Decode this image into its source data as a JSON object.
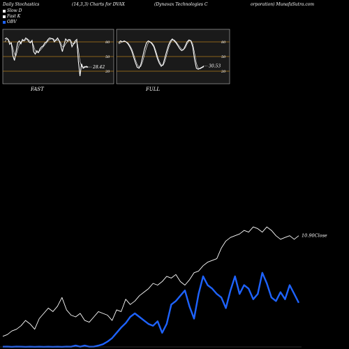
{
  "header": {
    "left": "Daily Stochastics",
    "center": "(14,3,3) Charts for DVAX",
    "right_a": "(Dynavax Technologies C",
    "right_b": "orporation) MunafaSutra.com"
  },
  "legend": [
    {
      "label": "Slow  D",
      "color": "#ffffff"
    },
    {
      "label": "Fast  K",
      "color": "#ffffff"
    },
    {
      "label": "OBV",
      "color": "#1e63ff"
    }
  ],
  "colors": {
    "obv": "#1e63ff",
    "close": "#ffffff",
    "level": "#b07a1a",
    "panel": "#1a1a1a"
  },
  "panels": [
    {
      "label": "FAST",
      "last_label": "28.42",
      "levels": [
        80,
        50,
        20
      ],
      "k": [
        86,
        88,
        85,
        75,
        78,
        52,
        42,
        60,
        78,
        82,
        76,
        85,
        82,
        88,
        86,
        80,
        78,
        83,
        60,
        55,
        62,
        58,
        66,
        70,
        72,
        78,
        80,
        85,
        88,
        87,
        86,
        80,
        84,
        88,
        82,
        72,
        60,
        74,
        86,
        82,
        85,
        84,
        70,
        76,
        82,
        85,
        40,
        10,
        35,
        26,
        28,
        30,
        28.42
      ],
      "d": [
        80,
        85,
        86,
        80,
        77,
        68,
        55,
        52,
        64,
        75,
        80,
        82,
        83,
        84,
        86,
        84,
        80,
        80,
        72,
        62,
        58,
        59,
        62,
        66,
        70,
        74,
        78,
        82,
        85,
        86,
        87,
        84,
        83,
        84,
        83,
        78,
        70,
        70,
        76,
        80,
        82,
        84,
        78,
        75,
        78,
        82,
        65,
        40,
        30,
        28,
        30,
        28,
        28
      ]
    },
    {
      "label": "FULL",
      "last_label": "30.53",
      "levels": [
        80,
        50,
        20
      ],
      "k": [
        78,
        82,
        80,
        82,
        80,
        76,
        70,
        62,
        50,
        38,
        28,
        26,
        34,
        50,
        66,
        78,
        82,
        80,
        76,
        70,
        58,
        45,
        36,
        30,
        34,
        48,
        62,
        74,
        82,
        86,
        82,
        78,
        72,
        66,
        62,
        64,
        72,
        80,
        84,
        82,
        70,
        44,
        26,
        24,
        26,
        28,
        30.53
      ],
      "d": [
        76,
        78,
        80,
        81,
        80,
        78,
        73,
        66,
        56,
        44,
        34,
        28,
        30,
        40,
        54,
        68,
        78,
        80,
        78,
        73,
        63,
        50,
        40,
        33,
        32,
        40,
        54,
        68,
        78,
        84,
        84,
        80,
        75,
        70,
        65,
        64,
        68,
        76,
        82,
        83,
        76,
        58,
        36,
        26,
        25,
        27,
        29
      ]
    }
  ],
  "chart_data": {
    "type": "line",
    "title": "",
    "series": [
      {
        "name": "OBV",
        "values": [
          0.2,
          0.3,
          0.1,
          0.3,
          0.2,
          0.1,
          0.2,
          0.1,
          0.2,
          0.1,
          0.2,
          0.1,
          0.2,
          0.1,
          0.3,
          0.2,
          1.5,
          0.2,
          1.5,
          0.2,
          0.3,
          1.5,
          3,
          6,
          10,
          16,
          22,
          27,
          34,
          38,
          34,
          30,
          26,
          24,
          29,
          16,
          26,
          48,
          52,
          58,
          64,
          46,
          32,
          60,
          80,
          70,
          66,
          60,
          56,
          44,
          64,
          80,
          60,
          70,
          66,
          54,
          60,
          84,
          72,
          56,
          52,
          62,
          54,
          70,
          60,
          50
        ]
      },
      {
        "name": "Close",
        "last_label": "10.90Close",
        "values": [
          12,
          14,
          18,
          20,
          24,
          30,
          26,
          20,
          32,
          38,
          44,
          40,
          46,
          56,
          42,
          36,
          34,
          38,
          30,
          28,
          34,
          40,
          38,
          36,
          30,
          42,
          40,
          54,
          48,
          52,
          58,
          62,
          66,
          72,
          70,
          74,
          80,
          78,
          82,
          74,
          70,
          76,
          84,
          86,
          92,
          96,
          98,
          100,
          112,
          120,
          124,
          126,
          128,
          132,
          130,
          136,
          134,
          130,
          136,
          132,
          126,
          122,
          124,
          126,
          122,
          126
        ]
      }
    ]
  }
}
